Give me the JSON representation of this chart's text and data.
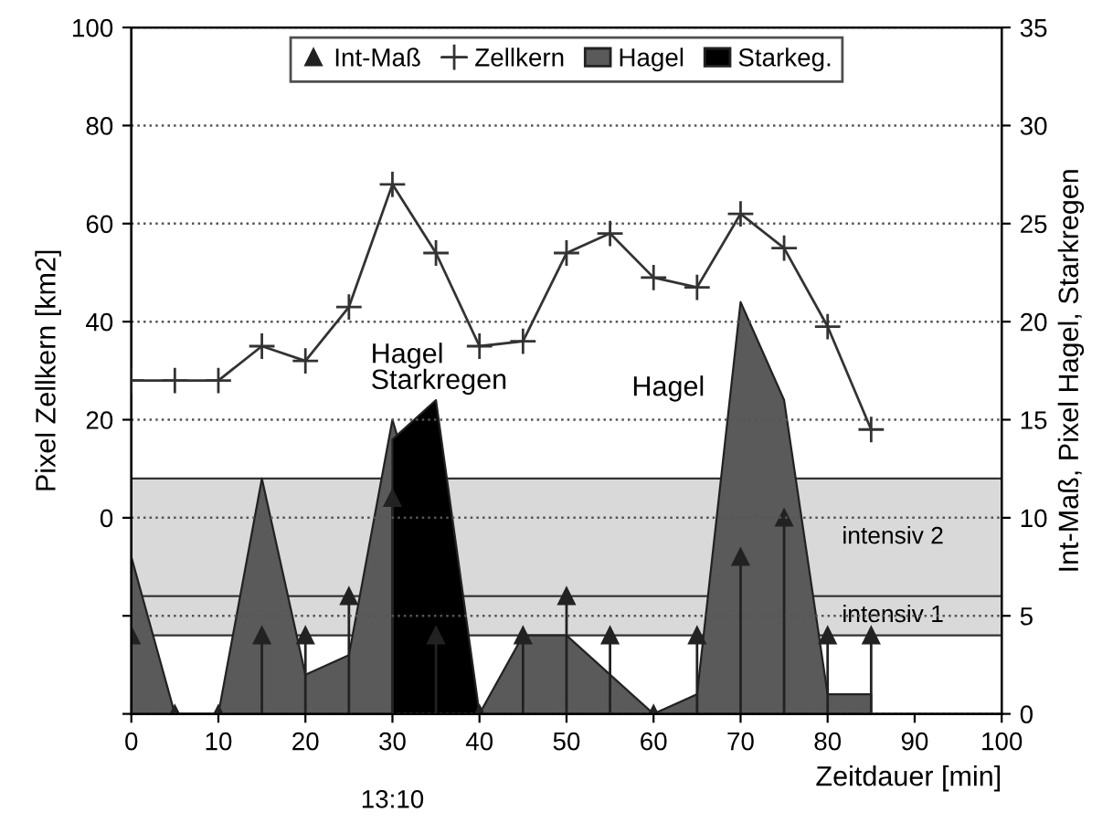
{
  "chart_data": {
    "type": "line",
    "xlabel": "Zeitdauer [min]",
    "ylabel": "Pixel Zellkern [km2]",
    "y2label": "Int-Maß, Pixel Hagel, Starkregen",
    "x": [
      0,
      5,
      10,
      15,
      20,
      25,
      30,
      35,
      40,
      45,
      50,
      55,
      60,
      65,
      70,
      75,
      80,
      85
    ],
    "xlim": [
      0,
      100
    ],
    "xticks": [
      0,
      10,
      20,
      30,
      40,
      50,
      60,
      70,
      80,
      90,
      100
    ],
    "ylim": [
      -40,
      100
    ],
    "yticks": [
      {
        "value": -40,
        "label": null
      },
      {
        "value": -20,
        "label": null
      },
      0,
      20,
      40,
      60,
      80,
      100
    ],
    "y2lim": [
      0,
      35
    ],
    "y2ticks": [
      0,
      5,
      10,
      15,
      20,
      25,
      30,
      35
    ],
    "grid": "y",
    "line_style": "solid",
    "legend": "top",
    "series": [
      {
        "name": "Int-Maß",
        "type": "lollipop",
        "axis": "y2",
        "marker": "triangle",
        "color": "#222222",
        "values": [
          4,
          0,
          0,
          4,
          4,
          6,
          11,
          4,
          0,
          4,
          6,
          4,
          0,
          4,
          8,
          10,
          4,
          4
        ]
      },
      {
        "name": "Zellkern",
        "marker": "cross",
        "color": "#333333",
        "values": [
          28,
          28,
          28,
          35,
          32,
          43,
          68,
          54,
          35,
          36,
          54,
          58,
          49,
          47,
          62,
          55,
          39,
          18
        ]
      },
      {
        "name": "Hagel",
        "type": "area",
        "axis": "y2",
        "color": "#5a5a5a",
        "values": [
          8,
          0,
          0,
          12,
          2,
          3,
          15,
          null,
          0,
          4,
          4,
          2,
          0,
          1,
          21,
          16,
          1,
          1
        ]
      },
      {
        "name": "Starkeg.",
        "type": "area",
        "axis": "y2",
        "color": "#000000",
        "x": [
          30,
          35,
          40
        ],
        "values": [
          14,
          16,
          0
        ]
      }
    ],
    "bands": [
      {
        "axis": "y2",
        "from": 6,
        "to": 12,
        "label": "intensiv 2",
        "color": "#d9d9d9"
      },
      {
        "axis": "y2",
        "from": 4,
        "to": 6,
        "label": "intensiv 1",
        "color": "#d9d9d9"
      }
    ],
    "annotations": [
      "Hagel\nStarkregen",
      "Hagel",
      "13:10"
    ]
  }
}
